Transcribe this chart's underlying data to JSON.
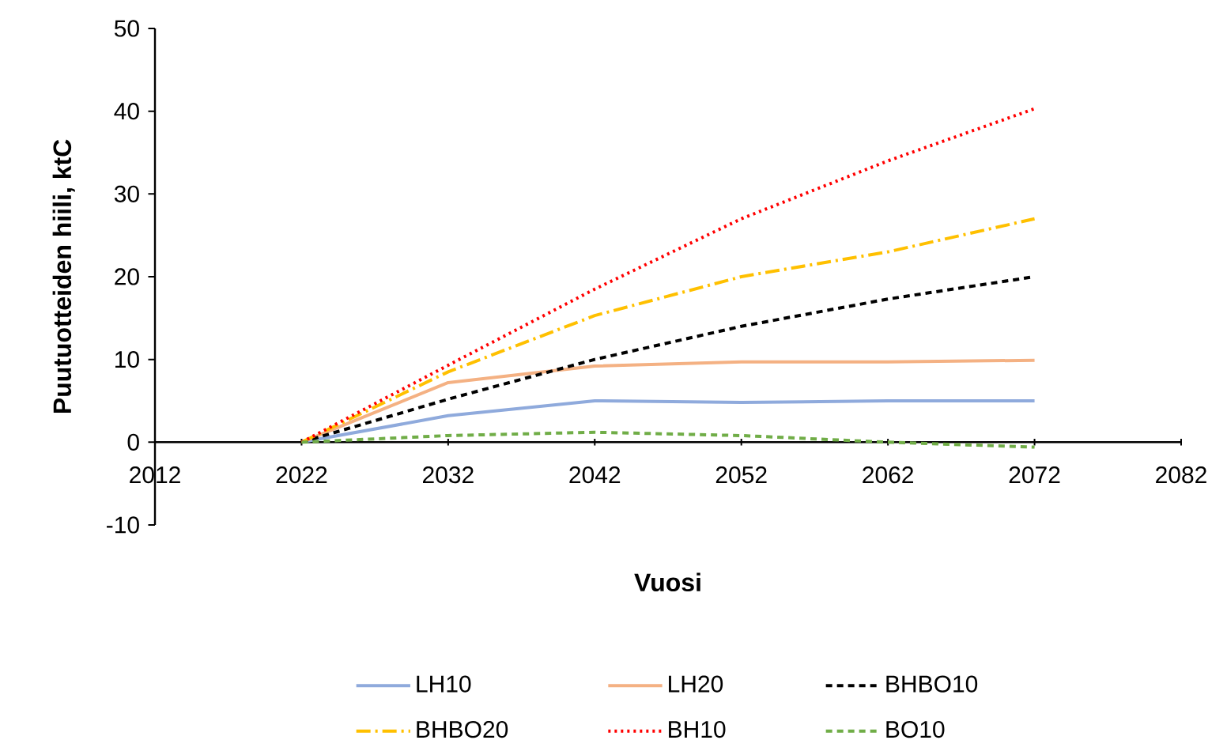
{
  "chart_data": {
    "type": "line",
    "xlabel": "Vuosi",
    "ylabel": "Puutuotteiden hiili, ktC",
    "x": [
      2022,
      2032,
      2042,
      2052,
      2062,
      2072
    ],
    "xlim": [
      2012,
      2082
    ],
    "xticks": [
      2012,
      2022,
      2032,
      2042,
      2052,
      2062,
      2072,
      2082
    ],
    "ylim": [
      -10,
      50
    ],
    "yticks": [
      -10,
      0,
      10,
      20,
      30,
      40,
      50
    ],
    "grid": false,
    "legend": "bottom",
    "marker": "none",
    "series": [
      {
        "name": "LH10",
        "color": "#8faadc",
        "line_style": "solid",
        "values": [
          0,
          3.2,
          5,
          4.8,
          5,
          5
        ]
      },
      {
        "name": "LH20",
        "color": "#f4b183",
        "line_style": "solid",
        "values": [
          0,
          7.2,
          9.2,
          9.7,
          9.7,
          9.9
        ]
      },
      {
        "name": "BHBO10",
        "color": "#000000",
        "line_style": "dashed",
        "values": [
          0,
          5.2,
          10,
          14,
          17.3,
          20
        ]
      },
      {
        "name": "BHBO20",
        "color": "#ffc000",
        "line_style": "dashdot",
        "values": [
          0,
          8.5,
          15.3,
          20,
          23,
          27
        ]
      },
      {
        "name": "BH10",
        "color": "#ff0000",
        "line_style": "dotted",
        "values": [
          0,
          9.3,
          18.5,
          27,
          34,
          40.3
        ]
      },
      {
        "name": "BO10",
        "color": "#70ad47",
        "line_style": "dashed",
        "values": [
          0,
          0.8,
          1.2,
          0.8,
          0,
          -0.6
        ]
      }
    ]
  }
}
